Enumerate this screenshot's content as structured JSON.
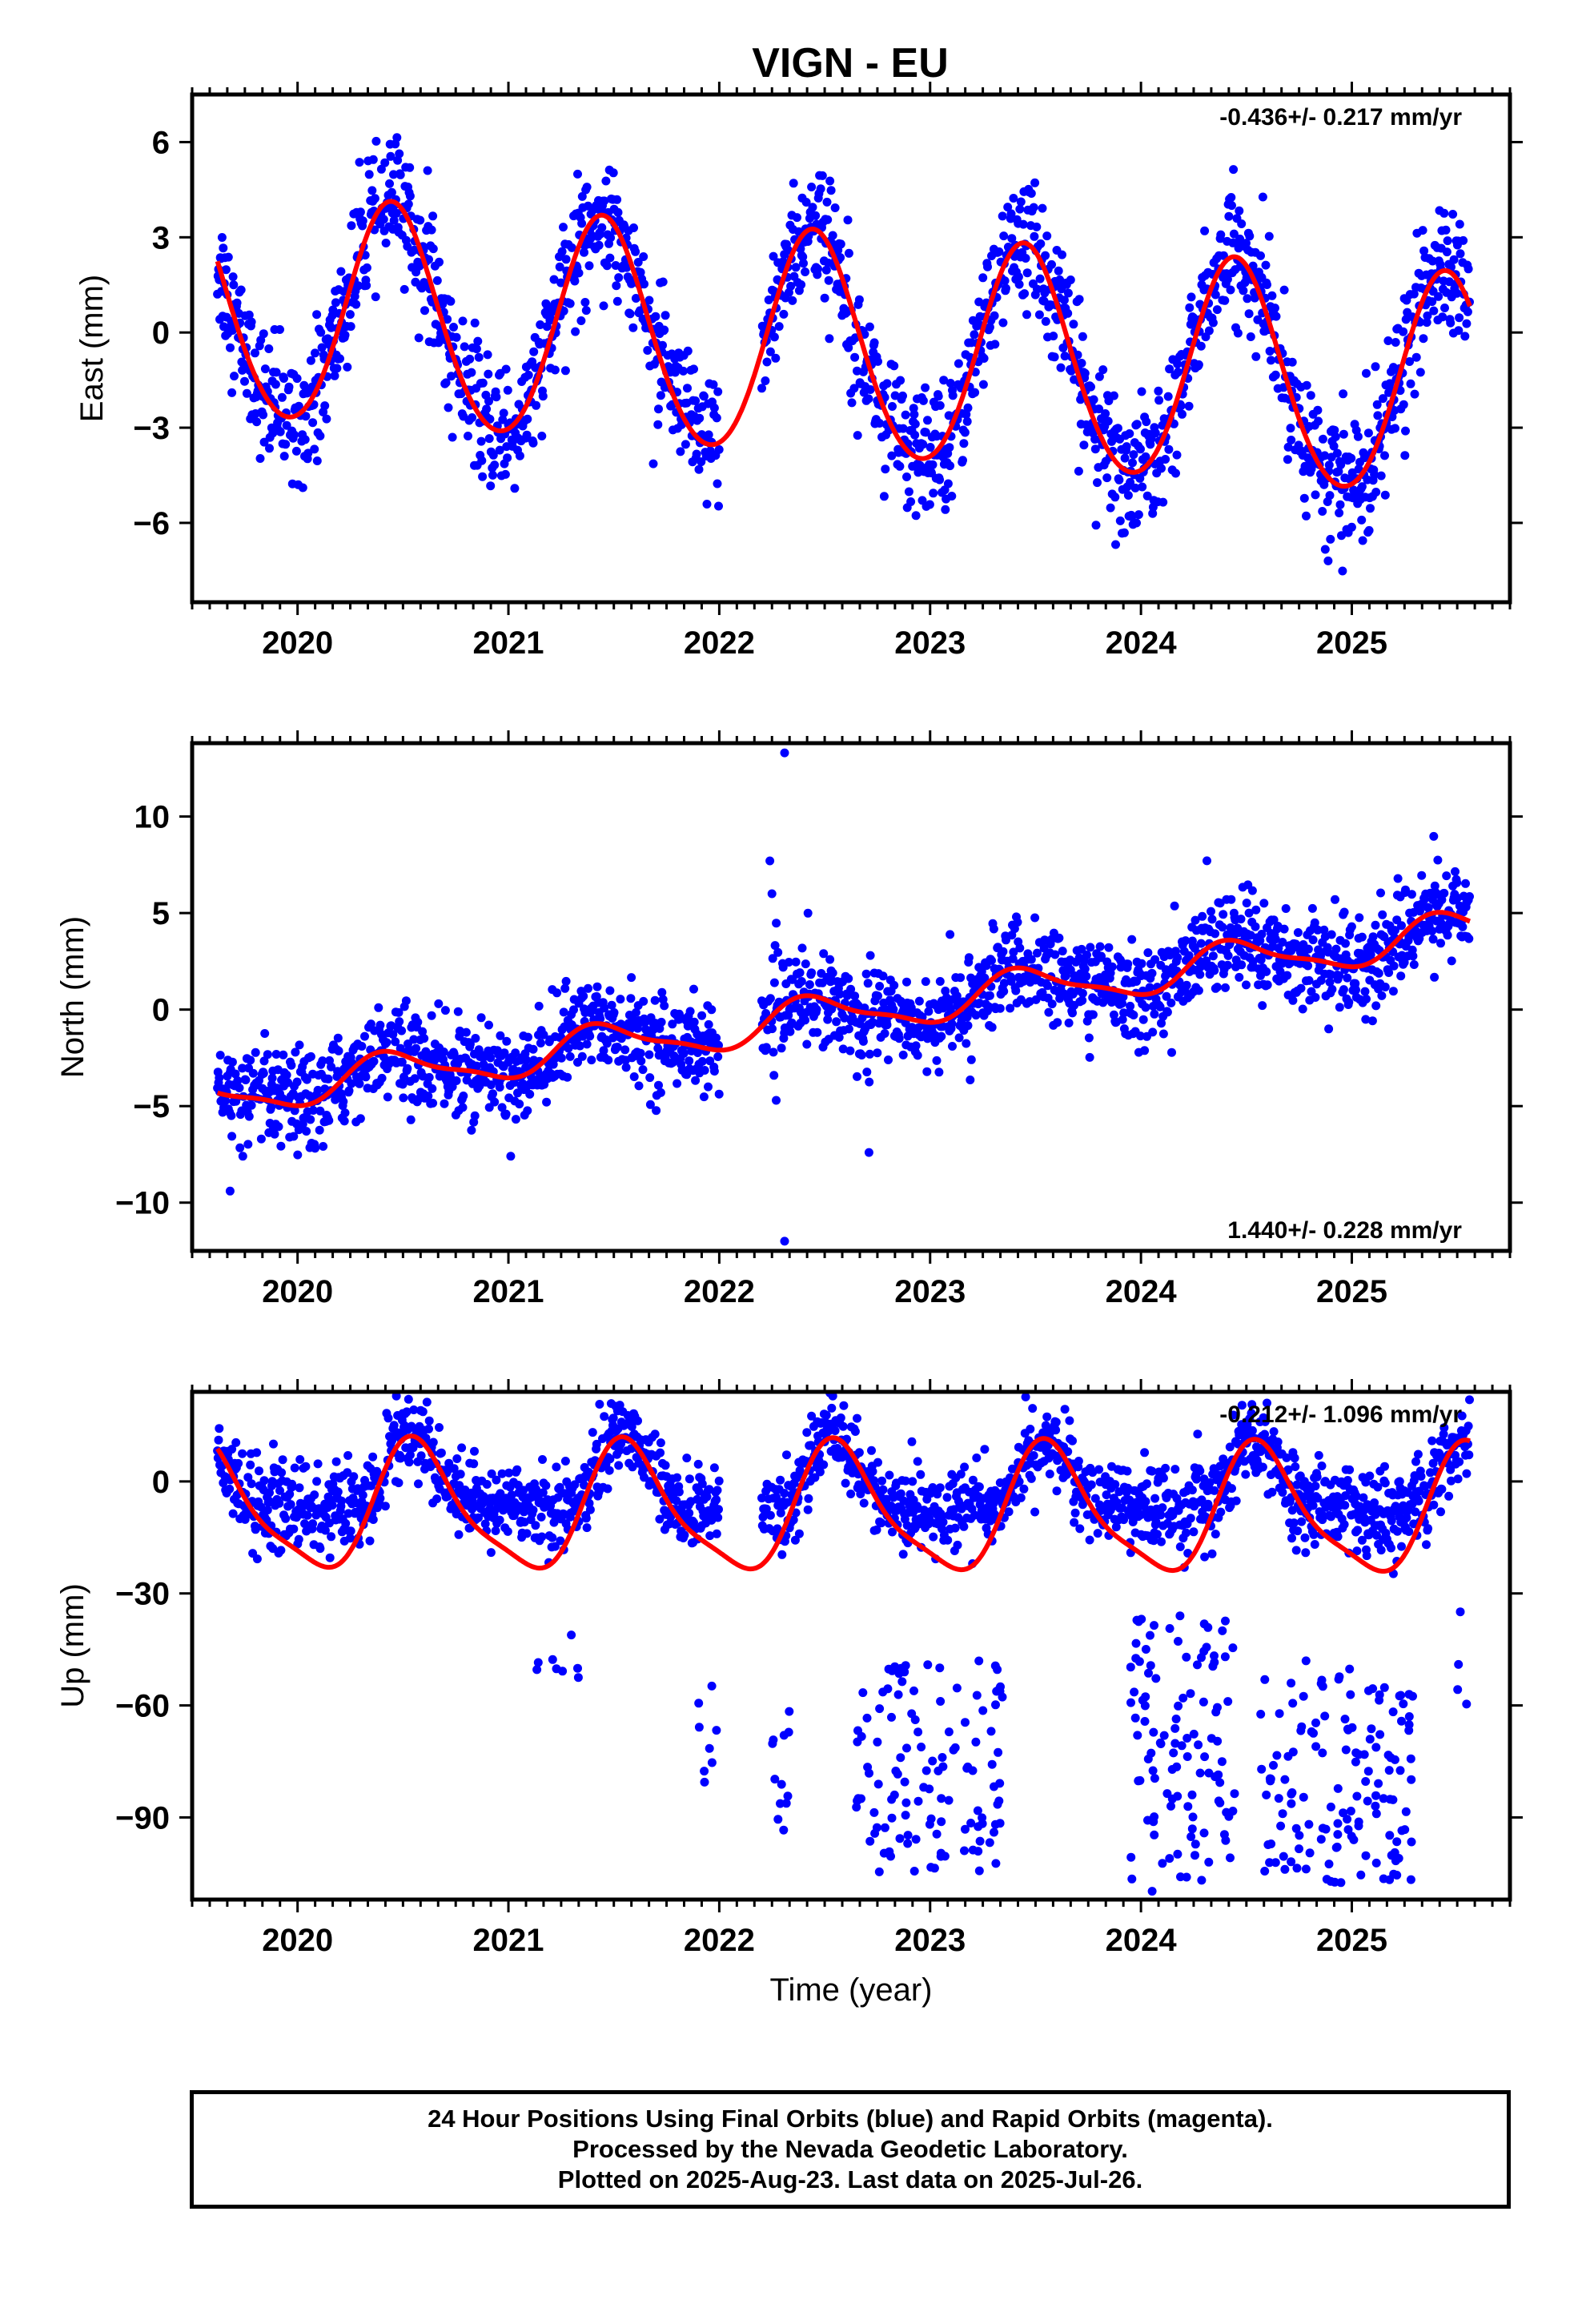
{
  "title": "VIGN - EU",
  "colors": {
    "final_orbits": "#0000ff",
    "model": "#ff0000",
    "frame": "#000000"
  },
  "chart_data": [
    {
      "type": "scatter",
      "panel": "east",
      "ylabel": "East (mm)",
      "xlabel": "",
      "rate_label": "-0.436+/- 0.217 mm/yr",
      "rate_position": "top-right",
      "xlim": [
        2019.5,
        2025.75
      ],
      "ylim": [
        -8.5,
        7.5
      ],
      "yticks": [
        6,
        3,
        0,
        -3,
        -6
      ],
      "ytick_labels": [
        "6",
        "3",
        "0",
        "−3",
        "−6"
      ],
      "xticks": [
        2020,
        2021,
        2022,
        2023,
        2024,
        2025
      ],
      "xtick_labels": [
        "2020",
        "2021",
        "2022",
        "2023",
        "2024",
        "2025"
      ],
      "data_start": 2019.62,
      "data_end": 2025.56,
      "gap": [
        2022.0,
        2022.2
      ],
      "model": {
        "offset": 0.75,
        "trend_mm_per_yr": -0.436,
        "t0": 2019.62,
        "annual_amplitude": 3.5,
        "annual_peak": 2020.45,
        "semiannual_amplitude": 0.25,
        "semiannual_phase": 0.3
      },
      "scatter_sigma": 1.0
    },
    {
      "type": "scatter",
      "panel": "north",
      "ylabel": "North (mm)",
      "xlabel": "",
      "rate_label": "1.440+/- 0.228 mm/yr",
      "rate_position": "bottom-right",
      "xlim": [
        2019.5,
        2025.75
      ],
      "ylim": [
        -12.5,
        13.8
      ],
      "yticks": [
        10,
        5,
        0,
        -5,
        -10
      ],
      "ytick_labels": [
        "10",
        "5",
        "0",
        "−5",
        "−10"
      ],
      "xticks": [
        2020,
        2021,
        2022,
        2023,
        2024,
        2025
      ],
      "xtick_labels": [
        "2020",
        "2021",
        "2022",
        "2023",
        "2024",
        "2025"
      ],
      "data_start": 2019.62,
      "data_end": 2025.56,
      "gap": [
        2022.0,
        2022.2
      ],
      "model": {
        "offset": -4.5,
        "trend_mm_per_yr": 1.44,
        "t0": 2019.62,
        "annual_amplitude": 1.0,
        "annual_peak": 2020.45,
        "semiannual_amplitude": 0.3,
        "semiannual_phase": 1.2
      },
      "scatter_sigma": 1.2,
      "outliers": [
        [
          2022.24,
          7.7
        ],
        [
          2022.25,
          6.0
        ],
        [
          2022.31,
          13.3
        ],
        [
          2022.31,
          -12.0
        ],
        [
          2022.71,
          -7.4
        ],
        [
          2019.68,
          -9.4
        ],
        [
          2022.27,
          -4.7
        ]
      ]
    },
    {
      "type": "scatter",
      "panel": "up",
      "ylabel": "Up (mm)",
      "xlabel": "Time (year)",
      "rate_label": "-0.212+/- 1.096 mm/yr",
      "rate_position": "top-right",
      "xlim": [
        2019.5,
        2025.75
      ],
      "ylim": [
        -112,
        24
      ],
      "yticks": [
        0,
        -30,
        -60,
        -90
      ],
      "ytick_labels": [
        "0",
        "−30",
        "−60",
        "−90"
      ],
      "xticks": [
        2020,
        2021,
        2022,
        2023,
        2024,
        2025
      ],
      "xtick_labels": [
        "2020",
        "2021",
        "2022",
        "2023",
        "2024",
        "2025"
      ],
      "data_start": 2019.62,
      "data_end": 2025.56,
      "gap": [
        2022.0,
        2022.2
      ],
      "model": {
        "offset": -7.5,
        "trend_mm_per_yr": -0.212,
        "t0": 2019.62,
        "annual_amplitude": 16.5,
        "annual_peak": 2020.57,
        "semiannual_amplitude": 4.0,
        "semiannual_phase": 0.8
      },
      "scatter_sigma": 5.5,
      "outlier_clusters": [
        {
          "x_range": [
            2021.1,
            2021.35
          ],
          "y_range": [
            -55,
            -35
          ],
          "count": 8
        },
        {
          "x_range": [
            2021.9,
            2022.0
          ],
          "y_range": [
            -90,
            -45
          ],
          "count": 8
        },
        {
          "x_range": [
            2022.25,
            2022.35
          ],
          "y_range": [
            -95,
            -55
          ],
          "count": 12
        },
        {
          "x_range": [
            2022.65,
            2023.35
          ],
          "y_range": [
            -105,
            -48
          ],
          "count": 120
        },
        {
          "x_range": [
            2023.95,
            2024.45
          ],
          "y_range": [
            -110,
            -35
          ],
          "count": 110
        },
        {
          "x_range": [
            2024.55,
            2024.85
          ],
          "y_range": [
            -105,
            -45
          ],
          "count": 45
        },
        {
          "x_range": [
            2024.85,
            2025.3
          ],
          "y_range": [
            -108,
            -50
          ],
          "count": 95
        },
        {
          "x_range": [
            2025.5,
            2025.55
          ],
          "y_range": [
            -60,
            -25
          ],
          "count": 4
        }
      ]
    }
  ],
  "footer": {
    "line1": "24 Hour Positions Using Final Orbits (blue) and Rapid Orbits (magenta).",
    "line2": "Processed by the Nevada Geodetic Laboratory.",
    "line3": "Plotted on 2025-Aug-23. Last data on 2025-Jul-26."
  }
}
